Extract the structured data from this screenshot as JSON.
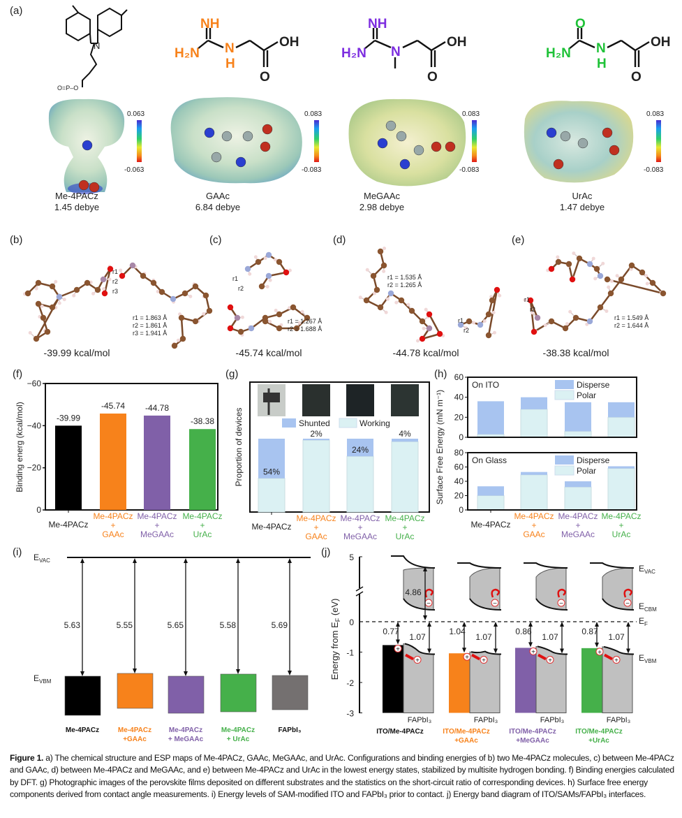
{
  "panel_labels": {
    "a": "(a)",
    "b": "(b)",
    "c": "(c)",
    "d": "(d)",
    "e": "(e)",
    "f": "(f)",
    "g": "(g)",
    "h": "(h)",
    "i": "(i)",
    "j": "(j)"
  },
  "panel_a": {
    "molecules": [
      {
        "name": "Me-4PACz",
        "dipole": "1.45 debye",
        "scale_max": "0.063",
        "scale_min": "-0.063",
        "color": "#000000"
      },
      {
        "name": "GAAc",
        "dipole": "6.84 debye",
        "scale_max": "0.083",
        "scale_min": "-0.083",
        "color": "#f7821b"
      },
      {
        "name": "MeGAAc",
        "dipole": "2.98 debye",
        "scale_max": "0.083",
        "scale_min": "-0.083",
        "color": "#7d2ee0"
      },
      {
        "name": "UrAc",
        "dipole": "1.47 debye",
        "scale_max": "0.083",
        "scale_min": "-0.083",
        "color": "#1fc238"
      }
    ],
    "atoms": {
      "nh": "NH",
      "h2n": "H₂N",
      "h": "H",
      "n": "N",
      "oh": "OH",
      "o": "O",
      "p": "P",
      "phos": "O=P–O"
    }
  },
  "configs": [
    {
      "id": "b",
      "energy": "-39.99 kcal/mol",
      "bonds": [
        "r1 = 1.863 Å",
        "r2 = 1.861 Å",
        "r3 = 1.941 Å"
      ],
      "bond_tags": [
        "r1",
        "r2",
        "r3"
      ]
    },
    {
      "id": "c",
      "energy": "-45.74 kcal/mol",
      "bonds": [
        "r1 = 1.267 Å",
        "r2 = 1.688 Å"
      ],
      "bond_tags": [
        "r1",
        "r2"
      ]
    },
    {
      "id": "d",
      "energy": "-44.78 kcal/mol",
      "bonds": [
        "r1 = 1.535 Å",
        "r2 = 1.265 Å"
      ],
      "bond_tags": [
        "r1",
        "r2"
      ]
    },
    {
      "id": "e",
      "energy": "-38.38 kcal/mol",
      "bonds": [
        "r1 = 1.549 Å",
        "r2 = 1.644 Å"
      ],
      "bond_tags": [
        "r1",
        "r2"
      ]
    }
  ],
  "chart_data": [
    {
      "id": "f",
      "type": "bar",
      "categories": [
        [
          "Me-4PACz"
        ],
        [
          "Me-4PACz",
          "+",
          "GAAc"
        ],
        [
          "Me-4PACz",
          "+",
          "MeGAAc"
        ],
        [
          "Me-4PACz",
          "+",
          "UrAc"
        ]
      ],
      "category_colors": [
        "#222222",
        "#f7821b",
        "#8060a8",
        "#45b04a"
      ],
      "values": [
        -39.99,
        -45.74,
        -44.78,
        -38.38
      ],
      "data_labels": [
        "-39.99",
        "-45.74",
        "-44.78",
        "-38.38"
      ],
      "bar_colors": [
        "#000000",
        "#f7821b",
        "#8060a8",
        "#45b04a"
      ],
      "ylabel": "Binding energ (kcal/mol)",
      "ylim": [
        0,
        -60
      ],
      "yticks": [
        0,
        -20,
        -40,
        -60
      ],
      "ytick_labels": [
        "0",
        "−20",
        "−40",
        "−60"
      ]
    },
    {
      "id": "g",
      "type": "bar",
      "stacked": true,
      "categories": [
        [
          "Me-4PACz"
        ],
        [
          "Me-4PACz",
          "+",
          "GAAc"
        ],
        [
          "Me-4PACz",
          "+",
          "MeGAAc"
        ],
        [
          "Me-4PACz",
          "+",
          "UrAc"
        ]
      ],
      "category_colors": [
        "#222222",
        "#f7821b",
        "#8060a8",
        "#45b04a"
      ],
      "series": [
        {
          "name": "Shunted",
          "values": [
            54,
            2,
            24,
            4
          ],
          "color": "#a8c4f0"
        },
        {
          "name": "Working",
          "values": [
            46,
            98,
            76,
            96
          ],
          "color": "#dbf1f3"
        }
      ],
      "data_labels": [
        "54%",
        "2%",
        "24%",
        "4%"
      ],
      "ylabel": "Proportion of devices",
      "ylim": [
        0,
        100
      ],
      "legend": "top"
    },
    {
      "id": "h-ito",
      "type": "bar",
      "stacked": true,
      "title": "On ITO",
      "series": [
        {
          "name": "Disperse",
          "values": [
            33,
            12,
            29,
            15
          ],
          "color": "#a8c4f0"
        },
        {
          "name": "Polar",
          "values": [
            3,
            28,
            6,
            20
          ],
          "color": "#dbf1f3"
        }
      ],
      "ylim": [
        0,
        60
      ],
      "yticks": [
        0,
        20,
        40,
        60
      ],
      "legend": "top-right"
    },
    {
      "id": "h-glass",
      "type": "bar",
      "stacked": true,
      "title": "On Glass",
      "categories": [
        [
          "Me-4PACz"
        ],
        [
          "Me-4PACz",
          "+",
          "GAAc"
        ],
        [
          "Me-4PACz",
          "+",
          "MeGAAc"
        ],
        [
          "Me-4PACz",
          "+",
          "UrAc"
        ]
      ],
      "category_colors": [
        "#222222",
        "#f7821b",
        "#8060a8",
        "#45b04a"
      ],
      "series": [
        {
          "name": "Disperse",
          "values": [
            13,
            4,
            8,
            3
          ],
          "color": "#a8c4f0"
        },
        {
          "name": "Polar",
          "values": [
            20,
            49,
            32,
            58
          ],
          "color": "#dbf1f3"
        }
      ],
      "ylim": [
        0,
        80
      ],
      "yticks": [
        0,
        20,
        40,
        60,
        80
      ],
      "legend": "top-right",
      "ylabel": "Surface Free Energy (mN m⁻¹)"
    }
  ],
  "panel_i": {
    "evac": "E",
    "evac_sub": "VAC",
    "evbm": "E",
    "evbm_sub": "VBM",
    "items": [
      {
        "label": [
          "Me-4PACz",
          ""
        ],
        "value": "5.63",
        "color": "#000000",
        "text_color": "#111111"
      },
      {
        "label": [
          "Me-4PACz",
          "+GAAc"
        ],
        "value": "5.55",
        "color": "#f7821b",
        "text_color": "#f7821b"
      },
      {
        "label": [
          "Me-4PACz",
          "+ MeGAAc"
        ],
        "value": "5.65",
        "color": "#8060a8",
        "text_color": "#8060a8"
      },
      {
        "label": [
          "Me-4PACz",
          "+ UrAc"
        ],
        "value": "5.58",
        "color": "#45b04a",
        "text_color": "#45b04a"
      },
      {
        "label": [
          "FAPbI₃",
          ""
        ],
        "value": "5.69",
        "color": "#747070",
        "text_color": "#111111"
      }
    ]
  },
  "panel_j": {
    "ylabel": "Energy from E",
    "ylabel_sub": "F",
    "ylabel_unit": " (eV)",
    "yticks": [
      "5",
      "0",
      "-1",
      "-2",
      "-3"
    ],
    "levels": {
      "vac": "VAC",
      "cbm": "CBM",
      "f": "F",
      "vbm": "VBM",
      "e": "E"
    },
    "gap": "4.86",
    "fapbi": "FAPbI₃",
    "columns": [
      {
        "label": [
          "ITO/Me-4PACz",
          ""
        ],
        "sam": "0.77",
        "sam_value": -0.77,
        "fapbi": "1.07",
        "color": "#000000",
        "text_color": "#111111"
      },
      {
        "label": [
          "ITO/Me-4PACz",
          "+GAAc"
        ],
        "sam": "1.04",
        "sam_value": -1.04,
        "fapbi": "1.07",
        "color": "#f7821b",
        "text_color": "#f7821b"
      },
      {
        "label": [
          "ITO/Me-4PACz",
          "+MeGAAc"
        ],
        "sam": "0.86",
        "sam_value": -0.86,
        "fapbi": "1.07",
        "color": "#8060a8",
        "text_color": "#8060a8"
      },
      {
        "label": [
          "ITO/Me-4PACz",
          "+UrAc"
        ],
        "sam": "0.87",
        "sam_value": -0.87,
        "fapbi": "1.07",
        "color": "#45b04a",
        "text_color": "#45b04a"
      }
    ]
  },
  "caption": {
    "figure": "Figure 1.",
    "text": "a) The chemical structure and ESP maps of Me-4PACz, GAAc, MeGAAc, and UrAc. Configurations and binding energies of b) two Me-4PACz molecules, c) between Me-4PACz and GAAc, d) between Me-4PACz and MeGAAc, and e) between Me-4PACz and UrAc in the lowest energy states, stabilized by multisite hydrogen bonding. f) Binding energies calculated by DFT. g) Photographic images of the perovskite films deposited on different substrates and the statistics on the short-circuit ratio of corresponding devices. h) Surface free energy components derived from contact angle measurements. i) Energy levels of SAM-modified ITO and FAPbI₃ prior to contact. j) Energy band diagram of ITO/SAMs/FAPbI₃ interfaces."
  }
}
